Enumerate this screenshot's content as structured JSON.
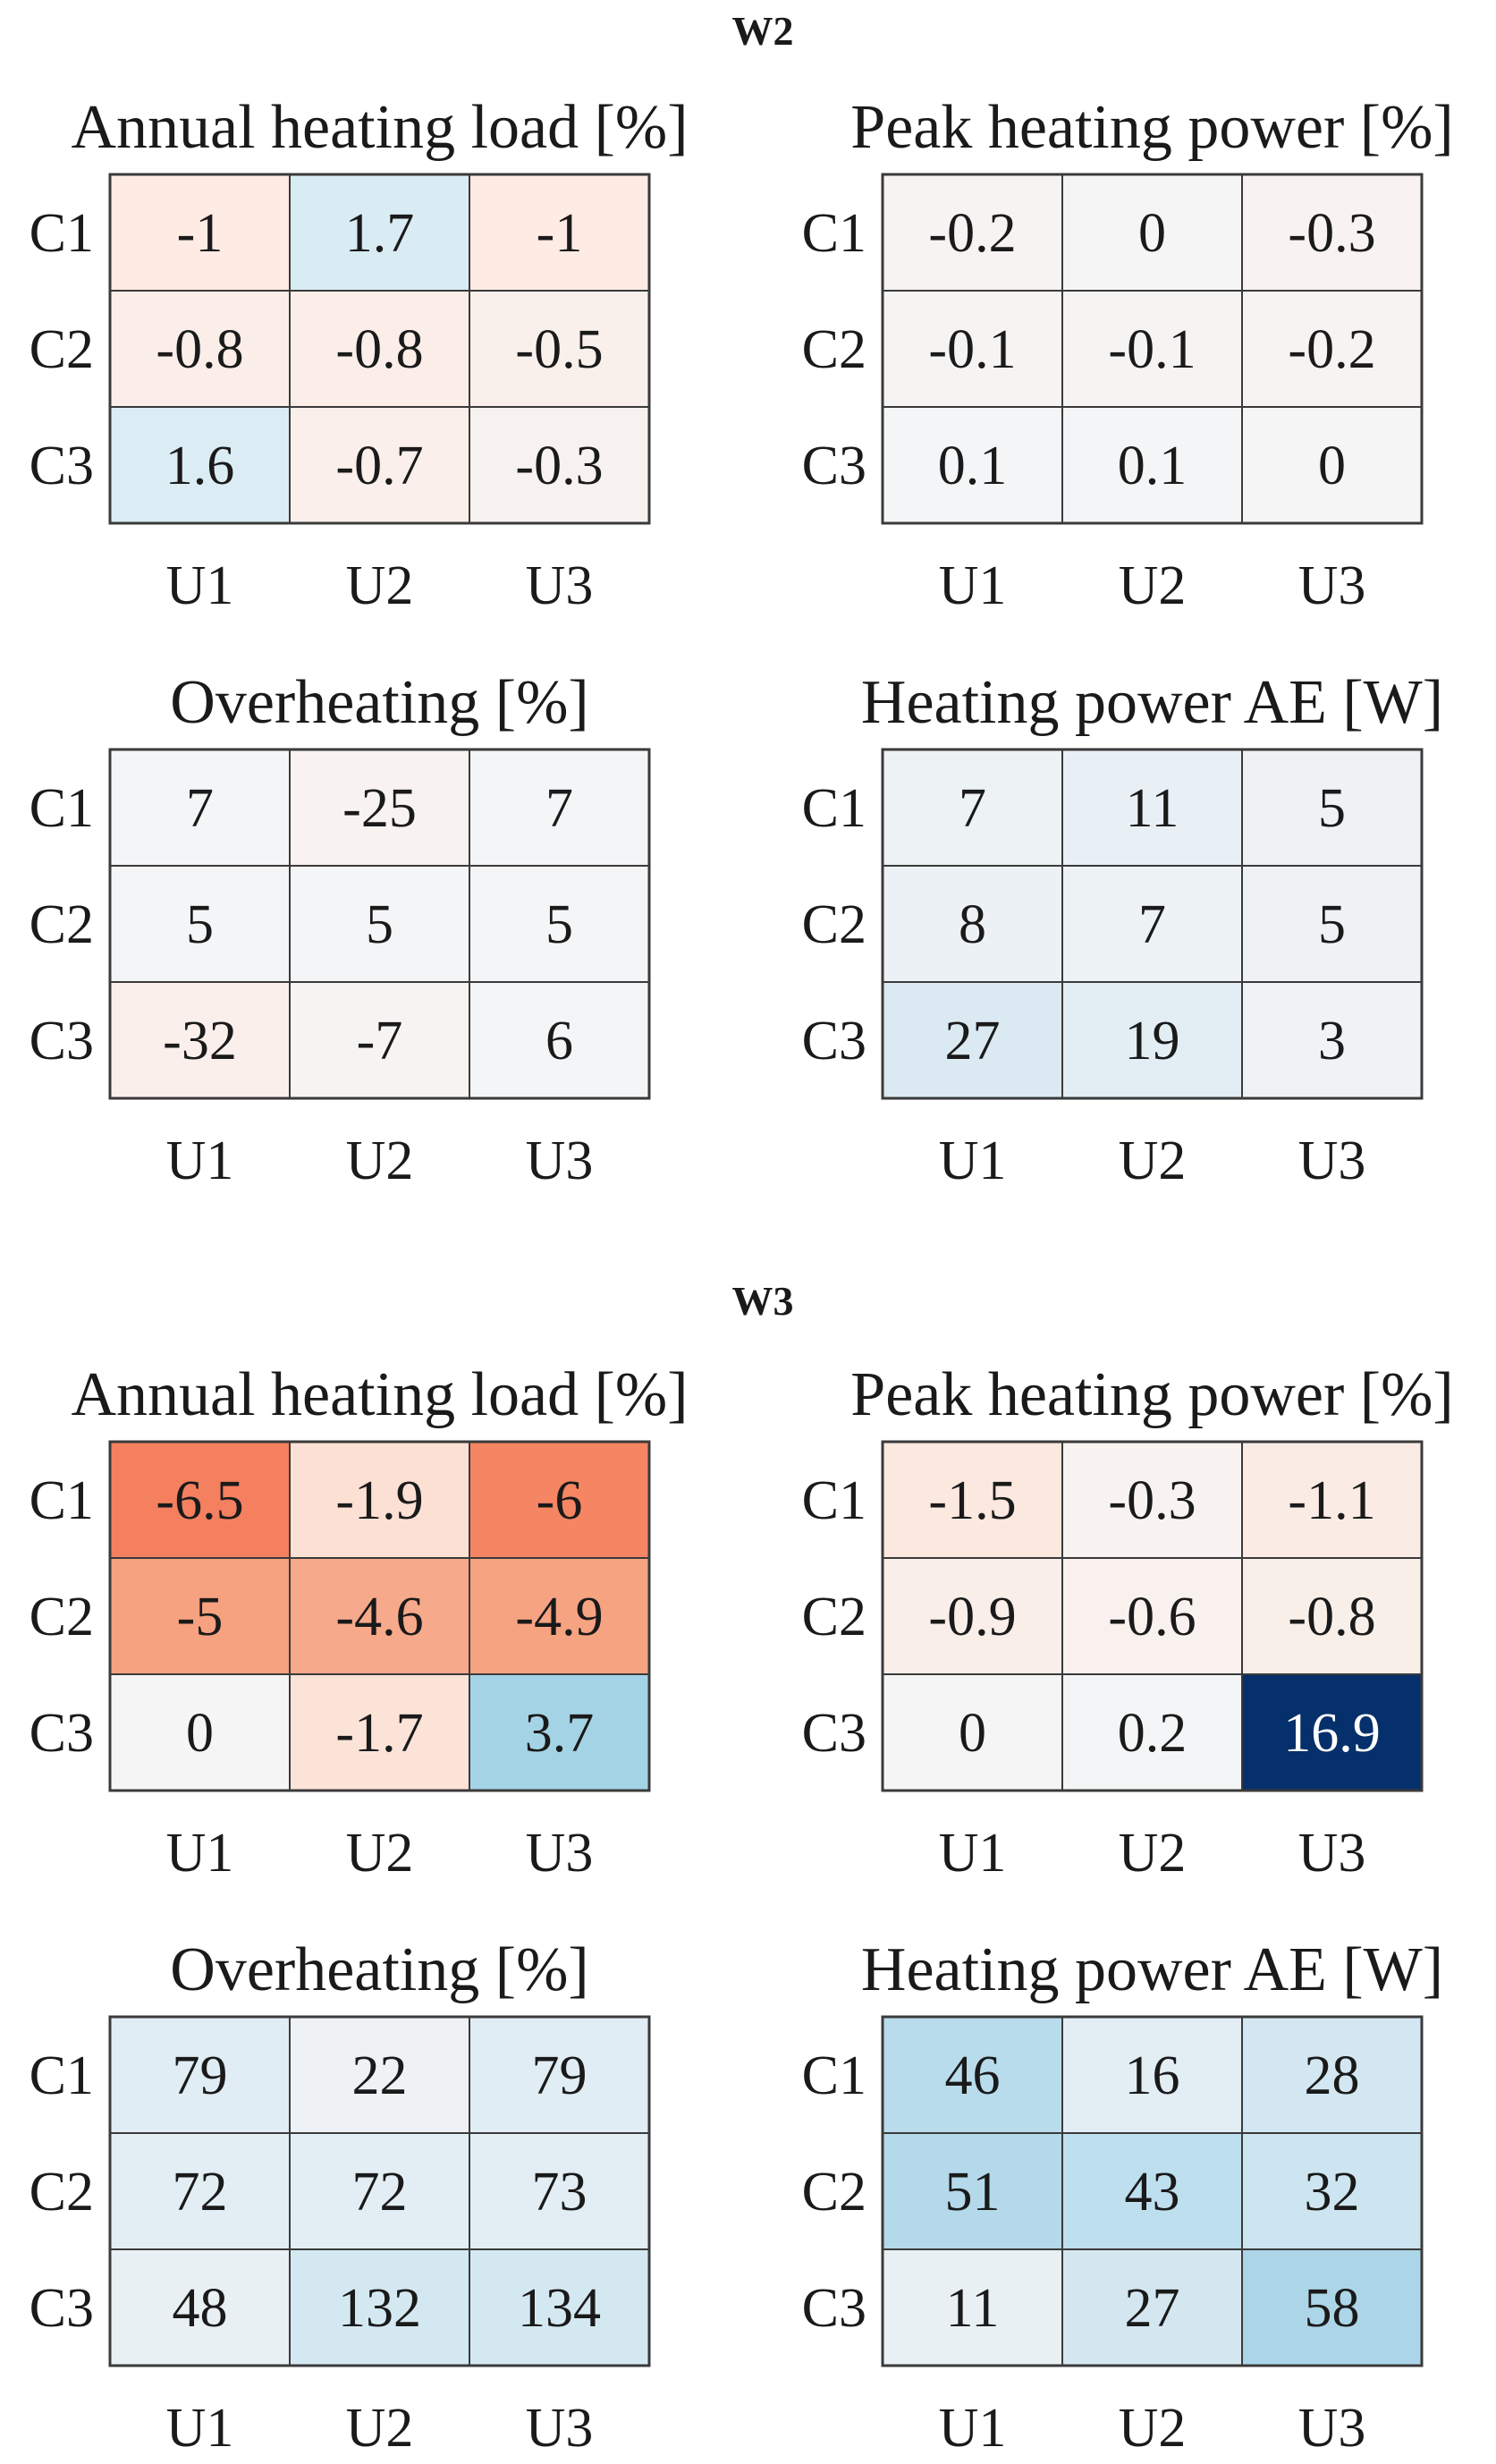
{
  "figure": {
    "groups": [
      {
        "title": "W2"
      },
      {
        "title": "W3"
      }
    ]
  },
  "chart_data": [
    {
      "type": "heatmap",
      "group": "W2",
      "title": "Annual heating load [%]",
      "row_labels": [
        "C1",
        "C2",
        "C3"
      ],
      "col_labels": [
        "U1",
        "U2",
        "U3"
      ],
      "values": [
        [
          -1,
          1.7,
          -1
        ],
        [
          -0.8,
          -0.8,
          -0.5
        ],
        [
          1.6,
          -0.7,
          -0.3
        ]
      ],
      "display": [
        [
          "-1",
          "1.7",
          "-1"
        ],
        [
          "-0.8",
          "-0.8",
          "-0.5"
        ],
        [
          "1.6",
          "-0.7",
          "-0.3"
        ]
      ],
      "colors": [
        [
          "#fdebe4",
          "#d9ebf3",
          "#fdebe4"
        ],
        [
          "#fbeee8",
          "#fbeee8",
          "#f9f0ec"
        ],
        [
          "#dbecf4",
          "#faefea",
          "#f7f2ef"
        ]
      ]
    },
    {
      "type": "heatmap",
      "group": "W2",
      "title": "Peak heating power [%]",
      "row_labels": [
        "C1",
        "C2",
        "C3"
      ],
      "col_labels": [
        "U1",
        "U2",
        "U3"
      ],
      "values": [
        [
          -0.2,
          0,
          -0.3
        ],
        [
          -0.1,
          -0.1,
          -0.2
        ],
        [
          0.1,
          0.1,
          0
        ]
      ],
      "display": [
        [
          "-0.2",
          "0",
          "-0.3"
        ],
        [
          "-0.1",
          "-0.1",
          "-0.2"
        ],
        [
          "0.1",
          "0.1",
          "0"
        ]
      ],
      "colors": [
        [
          "#f7f3f2",
          "#f5f5f5",
          "#f8f3f1"
        ],
        [
          "#f6f4f3",
          "#f6f4f3",
          "#f7f3f2"
        ],
        [
          "#f4f5f6",
          "#f4f5f6",
          "#f5f5f5"
        ]
      ]
    },
    {
      "type": "heatmap",
      "group": "W2",
      "title": "Overheating [%]",
      "row_labels": [
        "C1",
        "C2",
        "C3"
      ],
      "col_labels": [
        "U1",
        "U2",
        "U3"
      ],
      "values": [
        [
          7,
          -25,
          7
        ],
        [
          5,
          5,
          5
        ],
        [
          -32,
          -7,
          6
        ]
      ],
      "display": [
        [
          "7",
          "-25",
          "7"
        ],
        [
          "5",
          "5",
          "5"
        ],
        [
          "-32",
          "-7",
          "6"
        ]
      ],
      "colors": [
        [
          "#f4f5f6",
          "#f8f2f0",
          "#f4f5f6"
        ],
        [
          "#f4f5f6",
          "#f4f5f6",
          "#f4f5f6"
        ],
        [
          "#faefeb",
          "#f6f4f3",
          "#f4f5f6"
        ]
      ]
    },
    {
      "type": "heatmap",
      "group": "W2",
      "title": "Heating power AE [W]",
      "row_labels": [
        "C1",
        "C2",
        "C3"
      ],
      "col_labels": [
        "U1",
        "U2",
        "U3"
      ],
      "values": [
        [
          7,
          11,
          5
        ],
        [
          8,
          7,
          5
        ],
        [
          27,
          19,
          3
        ]
      ],
      "display": [
        [
          "7",
          "11",
          "5"
        ],
        [
          "8",
          "7",
          "5"
        ],
        [
          "27",
          "19",
          "3"
        ]
      ],
      "colors": [
        [
          "#edf2f5",
          "#e9f0f5",
          "#eef2f5"
        ],
        [
          "#ecf1f5",
          "#edf2f5",
          "#eef2f5"
        ],
        [
          "#dbe9f2",
          "#e3edf4",
          "#f0f3f5"
        ]
      ]
    },
    {
      "type": "heatmap",
      "group": "W3",
      "title": "Annual heating load [%]",
      "row_labels": [
        "C1",
        "C2",
        "C3"
      ],
      "col_labels": [
        "U1",
        "U2",
        "U3"
      ],
      "values": [
        [
          -6.5,
          -1.9,
          -6
        ],
        [
          -5,
          -4.6,
          -4.9
        ],
        [
          0,
          -1.7,
          3.7
        ]
      ],
      "display": [
        [
          "-6.5",
          "-1.9",
          "-6"
        ],
        [
          "-5",
          "-4.6",
          "-4.9"
        ],
        [
          "0",
          "-1.7",
          "3.7"
        ]
      ],
      "colors": [
        [
          "#f4805f",
          "#fce0d3",
          "#f58563"
        ],
        [
          "#f6a17f",
          "#f7a98b",
          "#f6a382"
        ],
        [
          "#f5f5f5",
          "#fbe3d7",
          "#a4d3e6"
        ]
      ]
    },
    {
      "type": "heatmap",
      "group": "W3",
      "title": "Peak heating power [%]",
      "row_labels": [
        "C1",
        "C2",
        "C3"
      ],
      "col_labels": [
        "U1",
        "U2",
        "U3"
      ],
      "values": [
        [
          -1.5,
          -0.3,
          -1.1
        ],
        [
          -0.9,
          -0.6,
          -0.8
        ],
        [
          0,
          0.2,
          16.9
        ]
      ],
      "display": [
        [
          "-1.5",
          "-0.3",
          "-1.1"
        ],
        [
          "-0.9",
          "-0.6",
          "-0.8"
        ],
        [
          "0",
          "0.2",
          "16.9"
        ]
      ],
      "colors": [
        [
          "#fbe8df",
          "#f8f3f1",
          "#faece5"
        ],
        [
          "#f9eee8",
          "#f8f1ed",
          "#f9efe9"
        ],
        [
          "#f5f5f5",
          "#f3f5f6",
          "#06306b"
        ]
      ]
    },
    {
      "type": "heatmap",
      "group": "W3",
      "title": "Overheating [%]",
      "row_labels": [
        "C1",
        "C2",
        "C3"
      ],
      "col_labels": [
        "U1",
        "U2",
        "U3"
      ],
      "values": [
        [
          79,
          22,
          79
        ],
        [
          72,
          72,
          73
        ],
        [
          48,
          132,
          134
        ]
      ],
      "display": [
        [
          "79",
          "22",
          "79"
        ],
        [
          "72",
          "72",
          "73"
        ],
        [
          "48",
          "132",
          "134"
        ]
      ],
      "colors": [
        [
          "#e1edf4",
          "#eef2f5",
          "#e1edf4"
        ],
        [
          "#e2eef4",
          "#e2eef4",
          "#e2eef4"
        ],
        [
          "#e8f0f4",
          "#d4e8f2",
          "#d4e8f2"
        ]
      ]
    },
    {
      "type": "heatmap",
      "group": "W3",
      "title": "Heating power AE [W]",
      "row_labels": [
        "C1",
        "C2",
        "C3"
      ],
      "col_labels": [
        "U1",
        "U2",
        "U3"
      ],
      "values": [
        [
          46,
          16,
          28
        ],
        [
          51,
          43,
          32
        ],
        [
          11,
          27,
          58
        ]
      ],
      "display": [
        [
          "46",
          "16",
          "28"
        ],
        [
          "51",
          "43",
          "32"
        ],
        [
          "11",
          "27",
          "58"
        ]
      ],
      "colors": [
        [
          "#b9dcec",
          "#e2eef4",
          "#d2e7f1"
        ],
        [
          "#b3d9eb",
          "#bedfee",
          "#cde5f0"
        ],
        [
          "#e8f0f4",
          "#d4e7f1",
          "#acd6e8"
        ]
      ]
    }
  ]
}
